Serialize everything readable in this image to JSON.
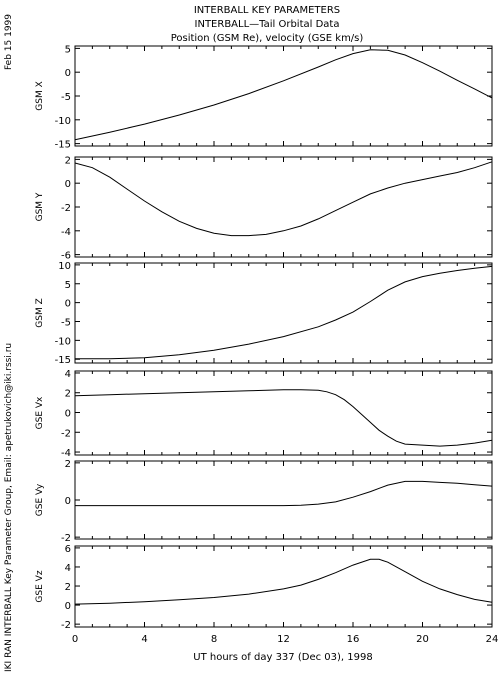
{
  "title_lines": [
    "INTERBALL KEY PARAMETERS",
    "INTERBALL—Tail Orbital Data",
    "Position (GSM Re), velocity (GSE km/s)"
  ],
  "date_label": "Feb 15 1999",
  "credit_label": "IKI RAN INTERBALL Key Parameter Group, Email: apetrukovich@iki.rssi.ru",
  "x_axis": {
    "label": "UT hours of day 337 (Dec 03), 1998",
    "ticks": [
      0,
      4,
      8,
      12,
      16,
      20,
      24
    ],
    "range": [
      0,
      24
    ]
  },
  "chart_data": [
    {
      "type": "line",
      "ylabel": "GSM X",
      "ylim": [
        -15.5,
        5.5
      ],
      "yticks": [
        5,
        0,
        -5,
        -10,
        -15
      ],
      "series": [
        {
          "x": [
            0,
            2,
            4,
            6,
            8,
            10,
            12,
            14,
            15,
            16,
            17,
            18,
            19,
            20,
            21,
            22,
            23,
            24
          ],
          "y": [
            -14.2,
            -12.6,
            -10.9,
            -9.0,
            -6.9,
            -4.5,
            -1.8,
            1.1,
            2.6,
            3.9,
            4.7,
            4.6,
            3.6,
            2.0,
            0.2,
            -1.7,
            -3.5,
            -5.4
          ]
        }
      ]
    },
    {
      "type": "line",
      "ylabel": "GSM Y",
      "ylim": [
        -6.2,
        2.2
      ],
      "yticks": [
        2,
        0,
        -2,
        -4,
        -6
      ],
      "series": [
        {
          "x": [
            0,
            1,
            2,
            3,
            4,
            5,
            6,
            7,
            8,
            9,
            10,
            11,
            12,
            13,
            14,
            15,
            16,
            17,
            18,
            19,
            20,
            21,
            22,
            23,
            24
          ],
          "y": [
            1.7,
            1.3,
            0.5,
            -0.5,
            -1.5,
            -2.4,
            -3.2,
            -3.8,
            -4.2,
            -4.4,
            -4.4,
            -4.3,
            -4.0,
            -3.6,
            -3.0,
            -2.3,
            -1.6,
            -0.9,
            -0.4,
            0.0,
            0.3,
            0.6,
            0.9,
            1.3,
            1.8
          ]
        }
      ]
    },
    {
      "type": "line",
      "ylabel": "GSM Z",
      "ylim": [
        -16,
        10.5
      ],
      "yticks": [
        10,
        5,
        0,
        -5,
        -10,
        -15
      ],
      "series": [
        {
          "x": [
            0,
            2,
            4,
            6,
            8,
            10,
            12,
            14,
            15,
            16,
            17,
            18,
            19,
            20,
            21,
            22,
            23,
            24
          ],
          "y": [
            -14.9,
            -14.9,
            -14.6,
            -13.8,
            -12.6,
            -11.0,
            -9.0,
            -6.4,
            -4.6,
            -2.5,
            0.3,
            3.3,
            5.5,
            6.9,
            7.8,
            8.5,
            9.1,
            9.6
          ]
        }
      ]
    },
    {
      "type": "line",
      "ylabel": "GSE Vx",
      "ylim": [
        -4.3,
        4.2
      ],
      "yticks": [
        4,
        2,
        0,
        -2,
        -4
      ],
      "series": [
        {
          "x": [
            0,
            2,
            4,
            6,
            8,
            10,
            12,
            13,
            14,
            14.5,
            15,
            15.5,
            16,
            16.5,
            17,
            17.5,
            18,
            18.5,
            19,
            20,
            21,
            22,
            23,
            24
          ],
          "y": [
            1.7,
            1.8,
            1.9,
            2.0,
            2.1,
            2.2,
            2.3,
            2.3,
            2.25,
            2.1,
            1.8,
            1.3,
            0.6,
            -0.2,
            -1.0,
            -1.8,
            -2.4,
            -2.9,
            -3.2,
            -3.3,
            -3.4,
            -3.3,
            -3.1,
            -2.8
          ]
        }
      ]
    },
    {
      "type": "line",
      "ylabel": "GSE Vy",
      "ylim": [
        -2.1,
        2.1
      ],
      "yticks": [
        2,
        0,
        -2
      ],
      "series": [
        {
          "x": [
            0,
            4,
            8,
            12,
            13,
            14,
            15,
            16,
            17,
            18,
            19,
            20,
            21,
            22,
            23,
            24
          ],
          "y": [
            -0.3,
            -0.3,
            -0.3,
            -0.3,
            -0.28,
            -0.22,
            -0.1,
            0.15,
            0.45,
            0.8,
            1.0,
            1.0,
            0.95,
            0.9,
            0.82,
            0.75
          ]
        }
      ]
    },
    {
      "type": "line",
      "ylabel": "GSE Vz",
      "ylim": [
        -2.3,
        6.2
      ],
      "yticks": [
        6,
        4,
        2,
        0,
        -2
      ],
      "series": [
        {
          "x": [
            0,
            2,
            4,
            6,
            8,
            10,
            12,
            13,
            14,
            15,
            16,
            17,
            17.5,
            18,
            19,
            20,
            21,
            22,
            23,
            24
          ],
          "y": [
            0.1,
            0.2,
            0.35,
            0.55,
            0.8,
            1.15,
            1.7,
            2.1,
            2.7,
            3.4,
            4.2,
            4.8,
            4.8,
            4.5,
            3.5,
            2.5,
            1.7,
            1.1,
            0.6,
            0.3
          ]
        }
      ]
    }
  ]
}
